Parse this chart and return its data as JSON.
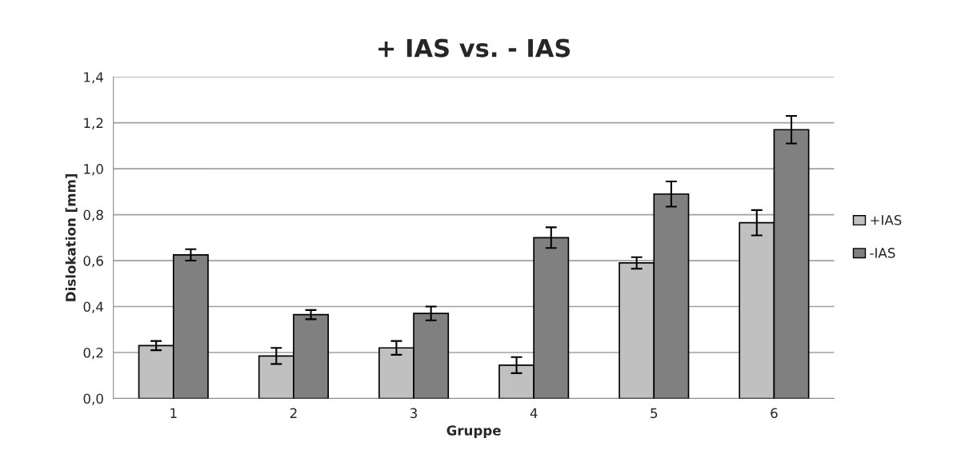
{
  "chart_data": {
    "type": "bar",
    "title": "+ IAS vs. - IAS",
    "xlabel": "Gruppe",
    "ylabel": "Dislokation [mm]",
    "categories": [
      "1",
      "2",
      "3",
      "4",
      "5",
      "6"
    ],
    "series": [
      {
        "name": "+IAS",
        "color": "#c0c0c0",
        "values": [
          0.23,
          0.185,
          0.22,
          0.145,
          0.59,
          0.765
        ],
        "errors": [
          0.02,
          0.035,
          0.03,
          0.035,
          0.025,
          0.055
        ]
      },
      {
        "name": "-IAS",
        "color": "#808080",
        "values": [
          0.625,
          0.365,
          0.37,
          0.7,
          0.89,
          1.17
        ],
        "errors": [
          0.025,
          0.02,
          0.03,
          0.045,
          0.055,
          0.06
        ]
      }
    ],
    "ylim": [
      0,
      1.4
    ],
    "yticks": [
      {
        "value": 0,
        "label": "0,0"
      },
      {
        "value": 0.2,
        "label": "0,2"
      },
      {
        "value": 0.4,
        "label": "0,4"
      },
      {
        "value": 0.6,
        "label": "0,6"
      },
      {
        "value": 0.8,
        "label": "0,8"
      },
      {
        "value": 1.0,
        "label": "1,0"
      },
      {
        "value": 1.2,
        "label": "1,2"
      },
      {
        "value": 1.4,
        "label": "1,4"
      }
    ],
    "grid": "y",
    "legend": "right"
  }
}
